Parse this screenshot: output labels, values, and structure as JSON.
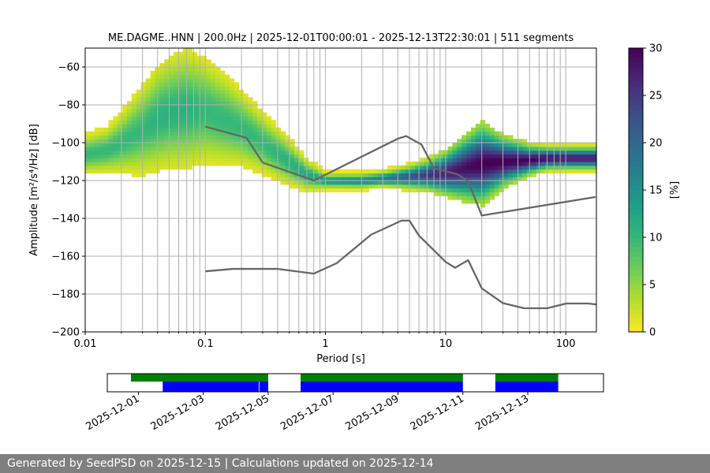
{
  "title": "ME.DAGME..HNN | 200.0Hz | 2025-12-01T00:00:01 - 2025-12-13T22:30:01 | 511 segments",
  "footer": "Generated by SeedPSD on 2025-12-15 | Calculations updated on 2025-12-14",
  "chart_data": [
    {
      "type": "heatmap",
      "title": "ME.DAGME..HNN | 200.0Hz | 2025-12-01T00:00:01 - 2025-12-13T22:30:01 | 511 segments",
      "xlabel": "Period [s]",
      "ylabel": "Amplitude [m²/s⁴/Hz] [dB]",
      "xscale": "log",
      "xlim": [
        0.01,
        180
      ],
      "ylim": [
        -200,
        -50
      ],
      "xticks": [
        0.01,
        0.1,
        1,
        10,
        100
      ],
      "xtick_labels": [
        "0.01",
        "0.1",
        "1",
        "10",
        "100"
      ],
      "yticks": [
        -200,
        -180,
        -160,
        -140,
        -120,
        -100,
        -80,
        -60
      ],
      "ytick_labels": [
        "−200",
        "−180",
        "−160",
        "−140",
        "−120",
        "−100",
        "−80",
        "−60"
      ],
      "grid": true,
      "colorbar": {
        "label": "[%]",
        "range": [
          0,
          30
        ],
        "ticks": [
          0,
          5,
          10,
          15,
          20,
          25,
          30
        ],
        "colormap": "viridis_r"
      },
      "psd_density": {
        "period": [
          0.01,
          0.015,
          0.02,
          0.03,
          0.04,
          0.05,
          0.07,
          0.1,
          0.15,
          0.2,
          0.3,
          0.5,
          0.7,
          1,
          2,
          3,
          5,
          7,
          10,
          15,
          20,
          30,
          50,
          70,
          100,
          180
        ],
        "mode_db": [
          -106,
          -104,
          -100,
          -93,
          -87,
          -84,
          -82,
          -83,
          -88,
          -92,
          -100,
          -110,
          -117,
          -120,
          -120,
          -119,
          -118,
          -117,
          -116,
          -113,
          -111,
          -110,
          -109,
          -108,
          -108,
          -108
        ],
        "spread_db": [
          5,
          6,
          8,
          12,
          14,
          15,
          16,
          14,
          12,
          10,
          8,
          6,
          4,
          2,
          2,
          2,
          3,
          4,
          6,
          9,
          11,
          7,
          4,
          3,
          3,
          3
        ],
        "peak_percent": [
          10,
          10,
          10,
          10,
          11,
          11,
          11,
          10,
          10,
          10,
          10,
          11,
          12,
          14,
          16,
          18,
          22,
          25,
          27,
          29,
          30,
          30,
          30,
          29,
          28,
          28
        ]
      },
      "series": [
        {
          "name": "",
          "color": "#666666",
          "x": [
            0.1,
            0.22,
            0.3,
            0.8,
            4.0,
            4.7,
            6.3,
            8.0,
            12.5,
            15.4,
            20.0,
            177
          ],
          "y": [
            -91.5,
            -97.4,
            -110.5,
            -120.0,
            -97.9,
            -96.5,
            -101.0,
            -113.5,
            -116.6,
            -120.4,
            -138.5,
            -128.7
          ]
        },
        {
          "name": "",
          "color": "#666666",
          "x": [
            0.1,
            0.17,
            0.4,
            0.8,
            1.24,
            2.4,
            4.3,
            5.0,
            6.0,
            10.0,
            12.0,
            15.4,
            20.0,
            30.0,
            45.0,
            70.0,
            101,
            154,
            180
          ],
          "y": [
            -168.0,
            -166.7,
            -166.7,
            -169.2,
            -163.7,
            -148.6,
            -141.2,
            -141.2,
            -149.1,
            -163.0,
            -166.1,
            -162.1,
            -177.0,
            -184.8,
            -187.5,
            -187.5,
            -185.0,
            -185.0,
            -185.5
          ]
        }
      ]
    },
    {
      "type": "bar",
      "title": "",
      "xtick_labels": [
        "2025-12-01",
        "2025-12-03",
        "2025-12-05",
        "2025-12-07",
        "2025-12-09",
        "2025-12-11",
        "2025-12-13"
      ],
      "xlim": [
        "2025-11-30T01:00",
        "2025-12-15T08:00"
      ],
      "series": [
        {
          "name": "",
          "color": "#008000",
          "spans": [
            [
              "2025-11-30T18:30",
              "2025-12-05T00:00"
            ],
            [
              "2025-12-06T00:00",
              "2025-12-11T00:00"
            ],
            [
              "2025-12-12T00:00",
              "2025-12-13T22:30"
            ]
          ]
        },
        {
          "name": "",
          "color": "#0000ff",
          "spans": [
            [
              "2025-12-01T18:00",
              "2025-12-04T17:00"
            ],
            [
              "2025-12-04T17:30",
              "2025-12-05T00:00"
            ],
            [
              "2025-12-06T00:00",
              "2025-12-11T00:00"
            ],
            [
              "2025-12-12T00:00",
              "2025-12-13T22:30"
            ]
          ]
        }
      ]
    }
  ]
}
